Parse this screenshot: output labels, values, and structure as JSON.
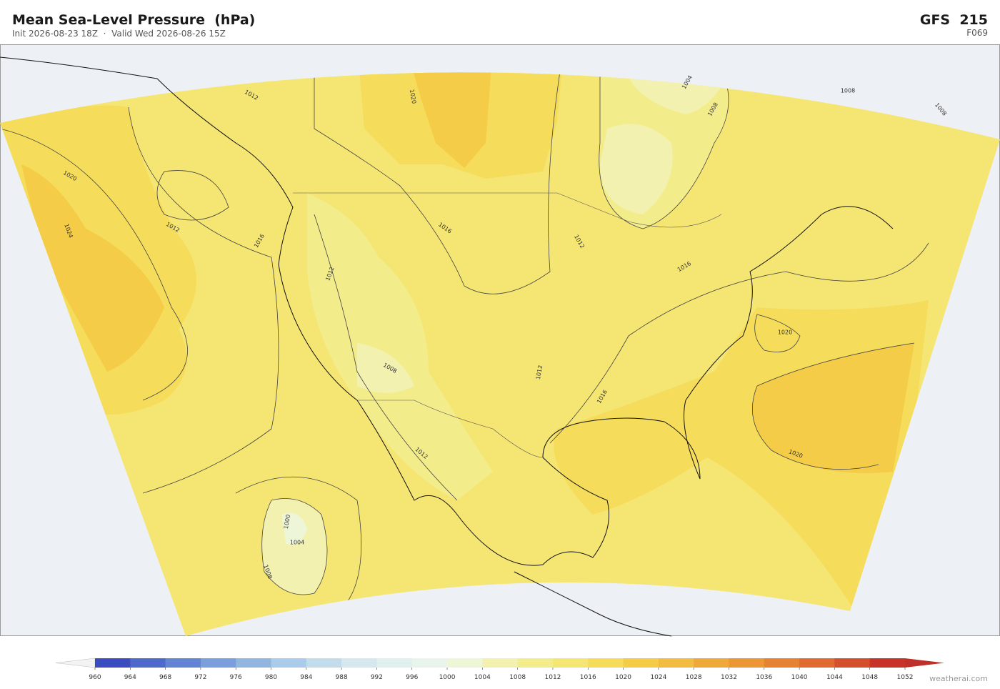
{
  "header": {
    "title": "Mean Sea-Level Pressure  (hPa)",
    "subtitle": "Init 2026-08-23 18Z  ·  Valid Wed 2026-08-26 15Z",
    "model": "GFS  215",
    "forecast_hour": "F069"
  },
  "map": {
    "contour_labels": [
      1012,
      1020,
      1024,
      1012,
      1016,
      1012,
      1020,
      1016,
      1012,
      1008,
      1012,
      1016,
      1012,
      1016,
      1004,
      1008,
      1008,
      1008,
      1020,
      1020,
      1004,
      1000,
      1008
    ]
  },
  "colorbar": {
    "ticks": [
      960,
      964,
      968,
      972,
      976,
      980,
      984,
      988,
      992,
      996,
      1000,
      1004,
      1008,
      1012,
      1016,
      1020,
      1024,
      1028,
      1032,
      1036,
      1040,
      1044,
      1048,
      1052
    ],
    "colors": [
      "#3a4cc0",
      "#4f68cc",
      "#6383d4",
      "#7b9fdc",
      "#92b6e0",
      "#aacbea",
      "#c2dcec",
      "#d5e8ee",
      "#e0f0ef",
      "#e8f4ec",
      "#eef6d8",
      "#f2f1b0",
      "#f3ec8a",
      "#f5e572",
      "#f5dc5a",
      "#f4cc48",
      "#f2bc40",
      "#efa83a",
      "#ec9636",
      "#e78232",
      "#e06a30",
      "#d4502c",
      "#c73328"
    ],
    "under_color": "#f1f3f5",
    "over_color": "#c0302a"
  },
  "footer": {
    "credit": "weatherai.com"
  }
}
